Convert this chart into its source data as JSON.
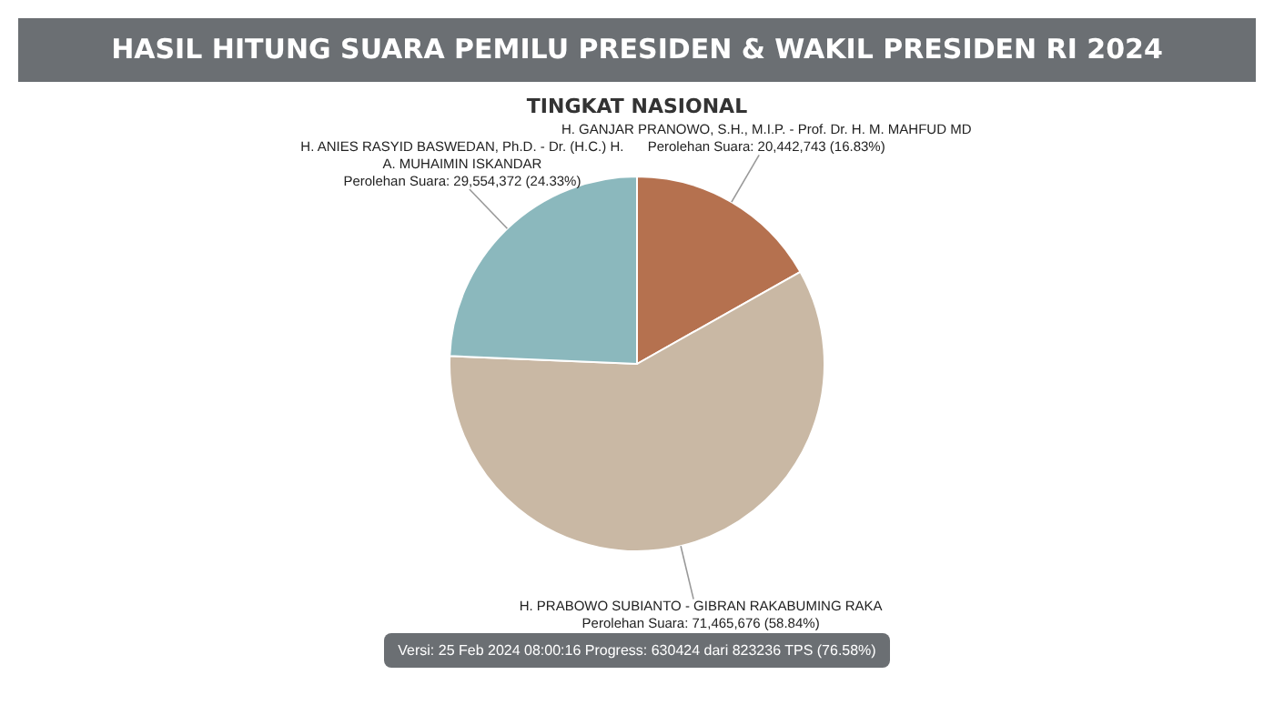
{
  "chart_data": {
    "type": "pie",
    "title": "HASIL HITUNG SUARA PEMILU PRESIDEN & WAKIL PRESIDEN RI 2024",
    "subtitle": "TINGKAT NASIONAL",
    "categories": [
      "H. GANJAR PRANOWO, S.H., M.I.P. - Prof. Dr. H. M. MAHFUD MD",
      "H. PRABOWO SUBIANTO - GIBRAN RAKABUMING RAKA",
      "H. ANIES RASYID BASWEDAN, Ph.D. - Dr. (H.C.) H. A. MUHAIMIN ISKANDAR"
    ],
    "values": [
      20442743,
      71465676,
      29554372
    ],
    "colors": [
      "#b5714f",
      "#c9b8a4",
      "#8bb8bd"
    ],
    "value_labels": [
      "Perolehan Suara: 20,442,743 (16.83%)",
      "Perolehan Suara: 71,465,676 (58.84%)",
      "Perolehan Suara: 29,554,372 (24.33%)"
    ],
    "annotations": [
      "Versi: 25 Feb 2024 08:00:16 Progress: 630424 dari 823236 TPS (76.58%)"
    ]
  }
}
